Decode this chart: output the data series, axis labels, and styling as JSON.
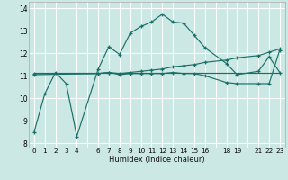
{
  "xlabel": "Humidex (Indice chaleur)",
  "bg_color": "#cce8e4",
  "grid_color": "#ffffff",
  "line_color": "#1a7068",
  "xlim": [
    -0.5,
    23.5
  ],
  "ylim": [
    7.8,
    14.3
  ],
  "xticks": [
    0,
    1,
    2,
    3,
    4,
    5,
    6,
    7,
    8,
    9,
    10,
    11,
    12,
    13,
    14,
    15,
    16,
    17,
    18,
    19,
    20,
    21,
    22,
    23
  ],
  "xtick_labels": [
    "0",
    "1",
    "2",
    "3",
    "4",
    "",
    "6",
    "7",
    "8",
    "9",
    "10",
    "11",
    "12",
    "13",
    "14",
    "15",
    "16",
    "",
    "18",
    "19",
    "",
    "21",
    "22",
    "23"
  ],
  "yticks": [
    8,
    9,
    10,
    11,
    12,
    13,
    14
  ],
  "line1_x": [
    0,
    1,
    2,
    3,
    4,
    6,
    7,
    8,
    9,
    10,
    11,
    12,
    13,
    14,
    15,
    16,
    18,
    19,
    21,
    22,
    23
  ],
  "line1_y": [
    8.5,
    10.2,
    11.15,
    10.65,
    8.3,
    11.3,
    12.3,
    11.95,
    12.9,
    13.2,
    13.4,
    13.75,
    13.4,
    13.35,
    12.8,
    12.25,
    11.55,
    11.05,
    11.2,
    11.85,
    11.15
  ],
  "line2_x": [
    0,
    23
  ],
  "line2_y": [
    11.15,
    11.15
  ],
  "line3_x": [
    0,
    6,
    7,
    8,
    9,
    10,
    11,
    12,
    13,
    14,
    15,
    16,
    18,
    19,
    21,
    22,
    23
  ],
  "line3_y": [
    11.1,
    11.1,
    11.15,
    11.05,
    11.1,
    11.1,
    11.1,
    11.1,
    11.15,
    11.1,
    11.1,
    11.0,
    10.7,
    10.65,
    10.65,
    10.65,
    12.15
  ],
  "line4_x": [
    0,
    6,
    7,
    8,
    9,
    10,
    11,
    12,
    13,
    14,
    15,
    16,
    18,
    19,
    21,
    22,
    23
  ],
  "line4_y": [
    11.05,
    11.1,
    11.15,
    11.1,
    11.15,
    11.2,
    11.25,
    11.3,
    11.4,
    11.45,
    11.5,
    11.6,
    11.7,
    11.8,
    11.9,
    12.05,
    12.2
  ]
}
